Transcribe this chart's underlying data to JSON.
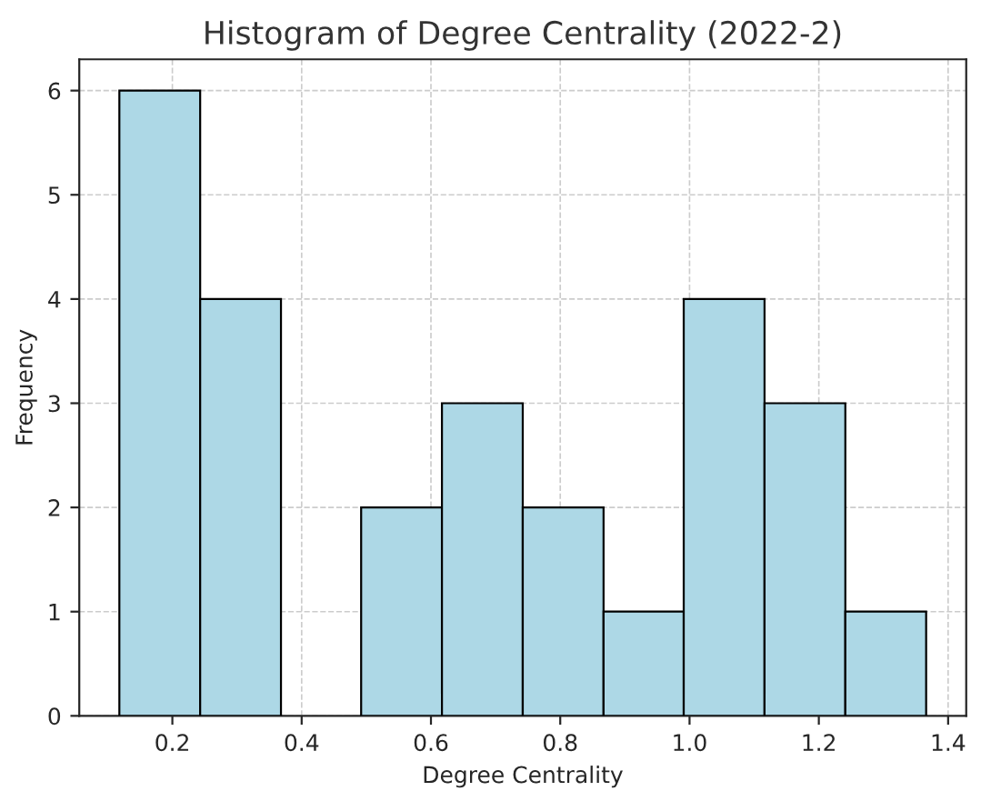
{
  "chart_data": {
    "type": "histogram",
    "title": "Histogram of Degree Centrality (2022-2)",
    "xlabel": "Degree Centrality",
    "ylabel": "Frequency",
    "bins": [
      0.118,
      0.243,
      0.368,
      0.492,
      0.617,
      0.742,
      0.867,
      0.991,
      1.116,
      1.241,
      1.366
    ],
    "values": [
      6,
      4,
      0,
      2,
      3,
      2,
      1,
      4,
      3,
      1
    ],
    "color": "#add8e6",
    "xlim": [
      0.056,
      1.428
    ],
    "ylim": [
      0,
      6.3
    ],
    "xticks": [
      {
        "value": 0.2,
        "label": "0.2"
      },
      {
        "value": 0.4,
        "label": "0.4"
      },
      {
        "value": 0.6,
        "label": "0.6"
      },
      {
        "value": 0.8,
        "label": "0.8"
      },
      {
        "value": 1.0,
        "label": "1.0"
      },
      {
        "value": 1.2,
        "label": "1.2"
      },
      {
        "value": 1.4,
        "label": "1.4"
      }
    ],
    "yticks": [
      0,
      1,
      2,
      3,
      4,
      5,
      6
    ],
    "grid": true
  }
}
